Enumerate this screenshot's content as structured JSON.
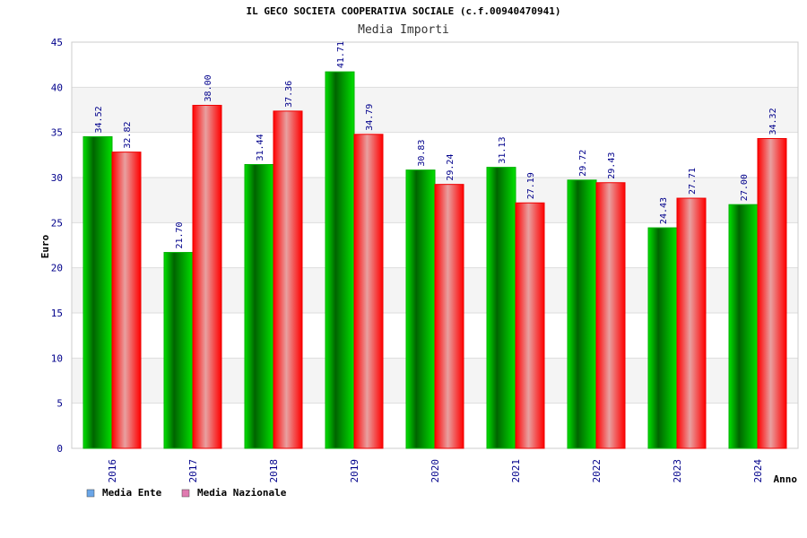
{
  "chart_data": {
    "type": "bar",
    "title": "IL GECO SOCIETA COOPERATIVA SOCIALE (c.f.00940470941)",
    "subtitle": "Media Importi",
    "xlabel": "Anno",
    "ylabel": "Euro",
    "ylim": [
      0,
      45
    ],
    "yticks": [
      "0",
      "5",
      "10",
      "15",
      "20",
      "25",
      "30",
      "35",
      "40",
      "45"
    ],
    "categories": [
      "2016",
      "2017",
      "2018",
      "2019",
      "2020",
      "2021",
      "2022",
      "2023",
      "2024"
    ],
    "series": [
      {
        "name": "Media Ente",
        "values": [
          34.52,
          21.7,
          31.44,
          41.71,
          30.83,
          31.13,
          29.72,
          24.43,
          27.0
        ],
        "labels": [
          "34.52",
          "21.70",
          "31.44",
          "41.71",
          "30.83",
          "31.13",
          "29.72",
          "24.43",
          "27.00"
        ],
        "color": "#00c000",
        "legend_color": "#6aa6e8"
      },
      {
        "name": "Media Nazionale",
        "values": [
          32.82,
          38.0,
          37.36,
          34.79,
          29.24,
          27.19,
          29.43,
          27.71,
          34.32
        ],
        "labels": [
          "32.82",
          "38.00",
          "37.36",
          "34.79",
          "29.24",
          "27.19",
          "29.43",
          "27.71",
          "34.32"
        ],
        "color": "#ff1a1a",
        "legend_color": "#e07ab0"
      }
    ],
    "grid": true,
    "legend_position": "bottom-left"
  }
}
